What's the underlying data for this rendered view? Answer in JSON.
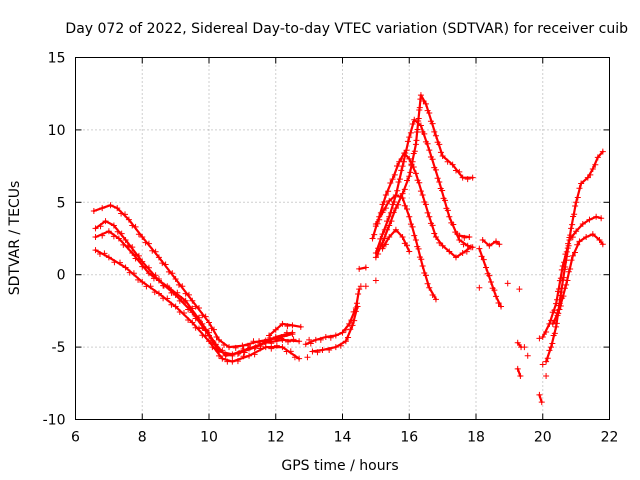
{
  "chart_data": {
    "type": "scatter",
    "title": "Day 072 of 2022, Sidereal Day-to-day VTEC variation (SDTVAR) for receiver cuib",
    "xlabel": "GPS time / hours",
    "ylabel": "SDTVAR / TECUs",
    "xlim": [
      6,
      22
    ],
    "ylim": [
      -10,
      15
    ],
    "x_ticks": [
      6,
      8,
      10,
      12,
      14,
      16,
      18,
      20,
      22
    ],
    "y_ticks": [
      -10,
      -5,
      0,
      5,
      10,
      15
    ],
    "x_tick_labels": [
      "6",
      "8",
      "10",
      "12",
      "14",
      "16",
      "18",
      "20",
      "22"
    ],
    "y_tick_labels": [
      "-10",
      "-5",
      "0",
      "5",
      "10",
      "15"
    ],
    "grid": true,
    "marker": "+",
    "color": "#ff0000",
    "series": [
      {
        "name": "track-1",
        "points": [
          [
            6.55,
            4.4
          ],
          [
            6.8,
            4.6
          ],
          [
            7.05,
            4.8
          ],
          [
            7.25,
            4.6
          ],
          [
            7.6,
            3.8
          ],
          [
            8.0,
            2.6
          ],
          [
            8.5,
            1.2
          ],
          [
            9.0,
            -0.3
          ],
          [
            9.5,
            -1.8
          ],
          [
            10.0,
            -3.3
          ],
          [
            10.3,
            -4.5
          ],
          [
            10.6,
            -5.0
          ],
          [
            11.0,
            -4.9
          ],
          [
            11.5,
            -4.6
          ],
          [
            12.0,
            -4.4
          ],
          [
            12.5,
            -4.1
          ]
        ]
      },
      {
        "name": "track-2",
        "points": [
          [
            6.6,
            3.2
          ],
          [
            6.9,
            3.7
          ],
          [
            7.15,
            3.4
          ],
          [
            7.5,
            2.4
          ],
          [
            8.0,
            0.9
          ],
          [
            8.5,
            -0.4
          ],
          [
            9.0,
            -1.4
          ],
          [
            9.5,
            -2.6
          ],
          [
            10.0,
            -4.2
          ],
          [
            10.3,
            -5.3
          ],
          [
            10.7,
            -5.5
          ],
          [
            11.2,
            -5.1
          ],
          [
            11.7,
            -4.7
          ],
          [
            12.2,
            -4.5
          ],
          [
            12.7,
            -4.6
          ]
        ]
      },
      {
        "name": "track-3",
        "points": [
          [
            6.6,
            2.6
          ],
          [
            7.0,
            3.0
          ],
          [
            7.3,
            2.5
          ],
          [
            7.7,
            1.5
          ],
          [
            8.2,
            0.1
          ],
          [
            8.8,
            -0.9
          ],
          [
            9.3,
            -1.8
          ],
          [
            9.8,
            -3.4
          ],
          [
            10.2,
            -4.8
          ],
          [
            10.5,
            -5.6
          ],
          [
            10.9,
            -5.4
          ],
          [
            11.4,
            -5.0
          ],
          [
            12.0,
            -4.3
          ],
          [
            12.5,
            -4.0
          ]
        ]
      },
      {
        "name": "track-4",
        "points": [
          [
            6.6,
            1.7
          ],
          [
            7.0,
            1.2
          ],
          [
            7.5,
            0.5
          ],
          [
            8.0,
            -0.5
          ],
          [
            8.5,
            -1.3
          ],
          [
            9.0,
            -2.2
          ],
          [
            9.5,
            -3.3
          ],
          [
            10.0,
            -4.6
          ],
          [
            10.4,
            -5.8
          ],
          [
            10.7,
            -6.0
          ],
          [
            11.2,
            -5.6
          ],
          [
            11.7,
            -5.0
          ],
          [
            12.2,
            -5.0
          ],
          [
            12.7,
            -5.8
          ]
        ]
      },
      {
        "name": "track-5",
        "points": [
          [
            11.8,
            -4.2
          ],
          [
            12.0,
            -3.8
          ],
          [
            12.2,
            -3.4
          ],
          [
            12.5,
            -3.5
          ],
          [
            12.75,
            -3.6
          ]
        ]
      },
      {
        "name": "track-6",
        "points": [
          [
            12.9,
            -4.8
          ],
          [
            13.2,
            -4.5
          ],
          [
            13.5,
            -4.3
          ],
          [
            13.8,
            -4.2
          ],
          [
            14.0,
            -4.0
          ],
          [
            14.2,
            -3.4
          ],
          [
            14.4,
            -2.3
          ],
          [
            14.5,
            -1.0
          ]
        ]
      },
      {
        "name": "track-7",
        "points": [
          [
            13.1,
            -5.3
          ],
          [
            13.4,
            -5.2
          ],
          [
            13.8,
            -5.0
          ],
          [
            14.1,
            -4.6
          ],
          [
            14.3,
            -3.5
          ],
          [
            14.45,
            -2.2
          ]
        ]
      },
      {
        "name": "track-8",
        "points": [
          [
            14.5,
            0.4
          ],
          [
            14.7,
            0.5
          ]
        ]
      },
      {
        "name": "track-9",
        "points": [
          [
            14.9,
            2.5
          ],
          [
            15.1,
            4.0
          ],
          [
            15.3,
            5.5
          ],
          [
            15.5,
            6.6
          ],
          [
            15.7,
            7.8
          ],
          [
            15.85,
            8.4
          ],
          [
            16.0,
            8.0
          ],
          [
            16.2,
            7.0
          ],
          [
            16.4,
            5.5
          ],
          [
            16.6,
            4.0
          ],
          [
            16.8,
            2.6
          ],
          [
            17.0,
            2.0
          ],
          [
            17.2,
            1.6
          ],
          [
            17.4,
            1.2
          ],
          [
            17.6,
            1.5
          ],
          [
            17.85,
            1.9
          ]
        ]
      },
      {
        "name": "track-10",
        "points": [
          [
            15.0,
            1.5
          ],
          [
            15.2,
            2.8
          ],
          [
            15.4,
            4.0
          ],
          [
            15.6,
            5.5
          ],
          [
            15.8,
            7.5
          ],
          [
            16.0,
            9.5
          ],
          [
            16.15,
            10.7
          ],
          [
            16.35,
            10.3
          ],
          [
            16.6,
            8.6
          ],
          [
            16.9,
            6.4
          ],
          [
            17.2,
            4.0
          ],
          [
            17.5,
            2.4
          ],
          [
            17.75,
            2.0
          ],
          [
            17.9,
            1.9
          ]
        ]
      },
      {
        "name": "track-11",
        "points": [
          [
            15.0,
            1.2
          ],
          [
            15.2,
            2.2
          ],
          [
            15.4,
            3.4
          ],
          [
            15.6,
            4.6
          ],
          [
            15.8,
            5.6
          ],
          [
            16.0,
            6.8
          ],
          [
            16.2,
            9.0
          ],
          [
            16.35,
            12.4
          ],
          [
            16.5,
            11.8
          ],
          [
            16.8,
            9.6
          ],
          [
            17.0,
            8.2
          ],
          [
            17.3,
            7.6
          ],
          [
            17.6,
            6.7
          ],
          [
            17.9,
            6.7
          ]
        ]
      },
      {
        "name": "track-12",
        "points": [
          [
            15.0,
            3.5
          ],
          [
            15.2,
            4.3
          ],
          [
            15.4,
            5.1
          ],
          [
            15.6,
            5.5
          ],
          [
            15.8,
            5.3
          ],
          [
            16.0,
            4.0
          ],
          [
            16.2,
            2.4
          ],
          [
            16.4,
            0.6
          ],
          [
            16.6,
            -0.9
          ],
          [
            16.8,
            -1.7
          ]
        ]
      },
      {
        "name": "track-13",
        "points": [
          [
            15.2,
            1.8
          ],
          [
            15.4,
            2.6
          ],
          [
            15.6,
            3.1
          ],
          [
            15.8,
            2.6
          ],
          [
            16.0,
            1.6
          ]
        ]
      },
      {
        "name": "track-14",
        "points": [
          [
            17.5,
            2.7
          ],
          [
            17.8,
            2.6
          ]
        ]
      },
      {
        "name": "track-15",
        "points": [
          [
            18.1,
            1.8
          ],
          [
            18.3,
            0.5
          ],
          [
            18.45,
            -0.5
          ],
          [
            18.6,
            -1.5
          ],
          [
            18.75,
            -2.2
          ]
        ]
      },
      {
        "name": "track-16",
        "points": [
          [
            18.2,
            2.4
          ],
          [
            18.4,
            2.0
          ],
          [
            18.6,
            2.3
          ],
          [
            18.7,
            2.1
          ]
        ]
      },
      {
        "name": "track-17",
        "points": [
          [
            19.25,
            -4.7
          ],
          [
            19.35,
            -5.0
          ]
        ]
      },
      {
        "name": "track-18",
        "points": [
          [
            19.25,
            -6.5
          ],
          [
            19.33,
            -7.0
          ]
        ]
      },
      {
        "name": "track-19",
        "points": [
          [
            19.9,
            -8.3
          ],
          [
            19.97,
            -8.8
          ]
        ]
      },
      {
        "name": "track-20",
        "points": [
          [
            20.1,
            -6.0
          ],
          [
            20.25,
            -5.0
          ],
          [
            20.4,
            -3.6
          ],
          [
            20.55,
            -1.2
          ],
          [
            20.7,
            1.0
          ],
          [
            20.85,
            3.2
          ],
          [
            21.0,
            5.0
          ],
          [
            21.15,
            6.3
          ],
          [
            21.35,
            6.7
          ],
          [
            21.5,
            7.3
          ],
          [
            21.65,
            8.1
          ],
          [
            21.8,
            8.5
          ]
        ]
      },
      {
        "name": "track-21",
        "points": [
          [
            20.0,
            -4.3
          ],
          [
            20.2,
            -3.4
          ],
          [
            20.4,
            -2.0
          ],
          [
            20.6,
            0.6
          ],
          [
            20.8,
            2.4
          ],
          [
            21.0,
            3.0
          ],
          [
            21.2,
            3.5
          ],
          [
            21.4,
            3.8
          ],
          [
            21.6,
            4.0
          ],
          [
            21.75,
            3.9
          ]
        ]
      },
      {
        "name": "track-22",
        "points": [
          [
            20.3,
            -3.4
          ],
          [
            20.5,
            -2.4
          ],
          [
            20.7,
            -0.7
          ],
          [
            20.9,
            1.3
          ],
          [
            21.1,
            2.3
          ],
          [
            21.3,
            2.6
          ],
          [
            21.5,
            2.8
          ],
          [
            21.7,
            2.4
          ],
          [
            21.8,
            2.1
          ]
        ]
      }
    ],
    "isolated_points": [
      [
        13.0,
        -4.5
      ],
      [
        12.95,
        -5.7
      ],
      [
        14.55,
        -0.8
      ],
      [
        14.7,
        -0.8
      ],
      [
        15.0,
        -0.4
      ],
      [
        18.95,
        -0.6
      ],
      [
        19.3,
        -1.0
      ],
      [
        18.1,
        -0.9
      ],
      [
        19.45,
        -5.0
      ],
      [
        19.9,
        -4.4
      ],
      [
        20.0,
        -6.2
      ],
      [
        19.55,
        -5.6
      ],
      [
        20.1,
        -7.0
      ]
    ]
  }
}
